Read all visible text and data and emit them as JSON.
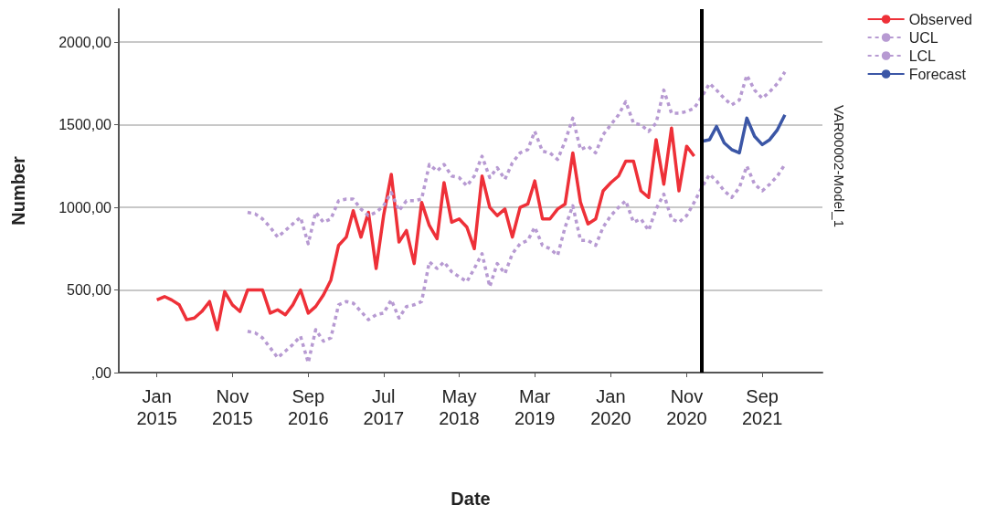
{
  "chart_data": {
    "type": "line",
    "xlabel": "Date",
    "ylabel": "Number",
    "annotations": [
      "VAR00002-Model_1"
    ],
    "xlim": [
      "2014-08",
      "2022-05"
    ],
    "xticks": [
      {
        "value": "2015-01",
        "label": "Jan 2015"
      },
      {
        "value": "2015-11",
        "label": "Nov 2015"
      },
      {
        "value": "2016-09",
        "label": "Sep 2016"
      },
      {
        "value": "2017-07",
        "label": "Jul 2017"
      },
      {
        "value": "2018-05",
        "label": "May 2018"
      },
      {
        "value": "2019-03",
        "label": "Mar 2019"
      },
      {
        "value": "2020-01",
        "label": "Jan 2020"
      },
      {
        "value": "2020-11",
        "label": "Nov 2020"
      },
      {
        "value": "2021-09",
        "label": "Sep 2021"
      }
    ],
    "ylim": [
      0,
      2200
    ],
    "yticks": [
      {
        "value": 0,
        "label": ",00"
      },
      {
        "value": 500,
        "label": "500,00"
      },
      {
        "value": 1000,
        "label": "1000,00"
      },
      {
        "value": 1500,
        "label": "1500,00"
      },
      {
        "value": 2000,
        "label": "2000,00"
      }
    ],
    "grid": "y",
    "legend": "top right",
    "marker": "none",
    "ref_lines": [
      {
        "axis": "x",
        "value": "2021-01",
        "color": "#000000"
      }
    ],
    "series": [
      {
        "name": "Observed",
        "color": "#ee3038",
        "line_style": "solid",
        "x": [
          "2015-01",
          "2015-02",
          "2015-03",
          "2015-04",
          "2015-05",
          "2015-06",
          "2015-07",
          "2015-08",
          "2015-09",
          "2015-10",
          "2015-11",
          "2015-12",
          "2016-01",
          "2016-02",
          "2016-03",
          "2016-04",
          "2016-05",
          "2016-06",
          "2016-07",
          "2016-08",
          "2016-09",
          "2016-10",
          "2016-11",
          "2016-12",
          "2017-01",
          "2017-02",
          "2017-03",
          "2017-04",
          "2017-05",
          "2017-06",
          "2017-07",
          "2017-08",
          "2017-09",
          "2017-10",
          "2017-11",
          "2017-12",
          "2018-01",
          "2018-02",
          "2018-03",
          "2018-04",
          "2018-05",
          "2018-06",
          "2018-07",
          "2018-08",
          "2018-09",
          "2018-10",
          "2018-11",
          "2018-12",
          "2019-01",
          "2019-02",
          "2019-03",
          "2019-04",
          "2019-05",
          "2019-06",
          "2019-07",
          "2019-08",
          "2019-09",
          "2019-10",
          "2019-11",
          "2019-12",
          "2020-01",
          "2020-02",
          "2020-03",
          "2020-04",
          "2020-05",
          "2020-06",
          "2020-07",
          "2020-08",
          "2020-09",
          "2020-10",
          "2020-11",
          "2020-12"
        ],
        "values": [
          440,
          460,
          440,
          410,
          320,
          330,
          370,
          430,
          260,
          490,
          410,
          370,
          500,
          500,
          500,
          360,
          380,
          350,
          410,
          500,
          360,
          400,
          470,
          560,
          770,
          820,
          980,
          820,
          970,
          630,
          950,
          1200,
          790,
          860,
          660,
          1030,
          890,
          810,
          1150,
          910,
          930,
          880,
          750,
          1190,
          1000,
          950,
          990,
          820,
          1000,
          1020,
          1160,
          930,
          930,
          990,
          1020,
          1330,
          1030,
          900,
          930,
          1100,
          1150,
          1190,
          1280,
          1280,
          1100,
          1060,
          1410,
          1140,
          1480,
          1100,
          1370,
          1310
        ]
      },
      {
        "name": "UCL",
        "color": "#b79ad2",
        "line_style": "dotted",
        "x": [
          "2016-01",
          "2016-02",
          "2016-03",
          "2016-04",
          "2016-05",
          "2016-06",
          "2016-07",
          "2016-08",
          "2016-09",
          "2016-10",
          "2016-11",
          "2016-12",
          "2017-01",
          "2017-02",
          "2017-03",
          "2017-04",
          "2017-05",
          "2017-06",
          "2017-07",
          "2017-08",
          "2017-09",
          "2017-10",
          "2017-11",
          "2017-12",
          "2018-01",
          "2018-02",
          "2018-03",
          "2018-04",
          "2018-05",
          "2018-06",
          "2018-07",
          "2018-08",
          "2018-09",
          "2018-10",
          "2018-11",
          "2018-12",
          "2019-01",
          "2019-02",
          "2019-03",
          "2019-04",
          "2019-05",
          "2019-06",
          "2019-07",
          "2019-08",
          "2019-09",
          "2019-10",
          "2019-11",
          "2019-12",
          "2020-01",
          "2020-02",
          "2020-03",
          "2020-04",
          "2020-05",
          "2020-06",
          "2020-07",
          "2020-08",
          "2020-09",
          "2020-10",
          "2020-11",
          "2020-12",
          "2021-01",
          "2021-02",
          "2021-03",
          "2021-04",
          "2021-05",
          "2021-06",
          "2021-07",
          "2021-08",
          "2021-09",
          "2021-10",
          "2021-11",
          "2021-12"
        ],
        "values": [
          970,
          960,
          930,
          880,
          820,
          860,
          900,
          940,
          780,
          970,
          910,
          930,
          1040,
          1050,
          1050,
          990,
          950,
          970,
          1010,
          1090,
          980,
          1040,
          1040,
          1050,
          1260,
          1220,
          1260,
          1190,
          1180,
          1130,
          1190,
          1310,
          1180,
          1240,
          1170,
          1270,
          1330,
          1350,
          1460,
          1340,
          1330,
          1290,
          1400,
          1540,
          1350,
          1370,
          1330,
          1440,
          1500,
          1560,
          1640,
          1510,
          1500,
          1460,
          1510,
          1710,
          1570,
          1570,
          1580,
          1600,
          1670,
          1750,
          1710,
          1660,
          1620,
          1650,
          1800,
          1710,
          1660,
          1700,
          1750,
          1820
        ]
      },
      {
        "name": "LCL",
        "color": "#b79ad2",
        "line_style": "dotted",
        "x": [
          "2016-01",
          "2016-02",
          "2016-03",
          "2016-04",
          "2016-05",
          "2016-06",
          "2016-07",
          "2016-08",
          "2016-09",
          "2016-10",
          "2016-11",
          "2016-12",
          "2017-01",
          "2017-02",
          "2017-03",
          "2017-04",
          "2017-05",
          "2017-06",
          "2017-07",
          "2017-08",
          "2017-09",
          "2017-10",
          "2017-11",
          "2017-12",
          "2018-01",
          "2018-02",
          "2018-03",
          "2018-04",
          "2018-05",
          "2018-06",
          "2018-07",
          "2018-08",
          "2018-09",
          "2018-10",
          "2018-11",
          "2018-12",
          "2019-01",
          "2019-02",
          "2019-03",
          "2019-04",
          "2019-05",
          "2019-06",
          "2019-07",
          "2019-08",
          "2019-09",
          "2019-10",
          "2019-11",
          "2019-12",
          "2020-01",
          "2020-02",
          "2020-03",
          "2020-04",
          "2020-05",
          "2020-06",
          "2020-07",
          "2020-08",
          "2020-09",
          "2020-10",
          "2020-11",
          "2020-12",
          "2021-01",
          "2021-02",
          "2021-03",
          "2021-04",
          "2021-05",
          "2021-06",
          "2021-07",
          "2021-08",
          "2021-09",
          "2021-10",
          "2021-11",
          "2021-12"
        ],
        "values": [
          250,
          240,
          210,
          150,
          90,
          130,
          170,
          220,
          60,
          260,
          190,
          210,
          410,
          430,
          420,
          370,
          320,
          350,
          360,
          440,
          330,
          400,
          410,
          430,
          670,
          630,
          670,
          610,
          580,
          550,
          630,
          720,
          520,
          660,
          600,
          720,
          780,
          800,
          880,
          770,
          750,
          710,
          880,
          1010,
          800,
          800,
          770,
          880,
          950,
          1000,
          1040,
          910,
          930,
          860,
          990,
          1080,
          930,
          910,
          950,
          1030,
          1120,
          1200,
          1160,
          1100,
          1060,
          1120,
          1250,
          1140,
          1100,
          1140,
          1190,
          1260
        ]
      },
      {
        "name": "Forecast",
        "color": "#3b56a6",
        "line_style": "solid",
        "x": [
          "2021-01",
          "2021-02",
          "2021-03",
          "2021-04",
          "2021-05",
          "2021-06",
          "2021-07",
          "2021-08",
          "2021-09",
          "2021-10",
          "2021-11",
          "2021-12"
        ],
        "values": [
          1400,
          1410,
          1490,
          1390,
          1350,
          1330,
          1540,
          1430,
          1380,
          1410,
          1470,
          1560
        ]
      }
    ]
  }
}
